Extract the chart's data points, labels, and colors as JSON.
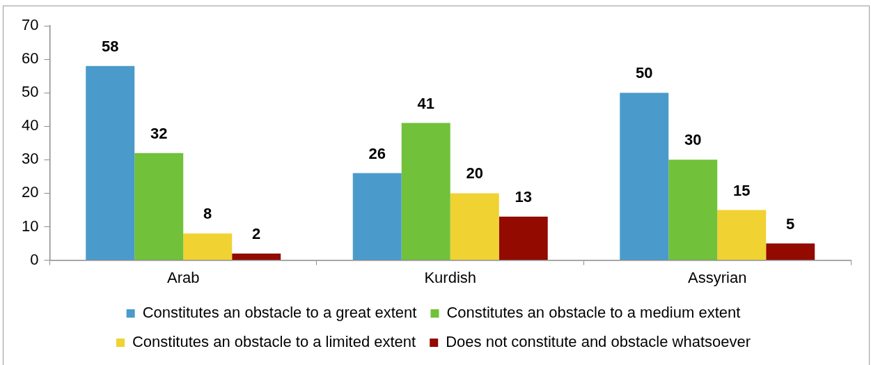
{
  "chart_data": {
    "type": "bar",
    "categories": [
      "Arab",
      "Kurdish",
      "Assyrian"
    ],
    "series": [
      {
        "name": "Constitutes an obstacle to a great extent",
        "color": "#4a9bcb",
        "values": [
          58,
          26,
          50
        ]
      },
      {
        "name": "Constitutes an obstacle to a medium extent",
        "color": "#71c13a",
        "values": [
          32,
          41,
          30
        ]
      },
      {
        "name": "Constitutes an obstacle to a limited extent",
        "color": "#f0d232",
        "values": [
          8,
          20,
          15
        ]
      },
      {
        "name": "Does not constitute and obstacle whatsoever",
        "color": "#920a00",
        "values": [
          2,
          13,
          5
        ]
      }
    ],
    "ylim": [
      0,
      70
    ],
    "yticks": [
      0,
      10,
      20,
      30,
      40,
      50,
      60,
      70
    ],
    "grid": false,
    "legend": "bottom",
    "data_labels": true
  }
}
